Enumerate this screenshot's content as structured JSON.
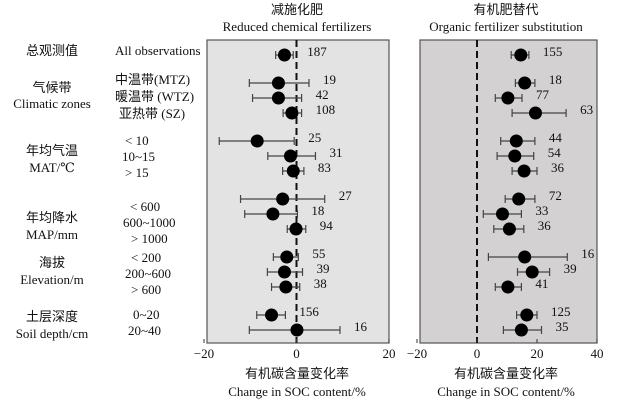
{
  "chart_data": [
    {
      "type": "forest",
      "title": "减施化肥",
      "subtitle": "Reduced chemical fertilizers",
      "xlabel": "有机碳含量变化率",
      "xlabel_en": "Change in SOC content/%",
      "xlim": [
        -20,
        20
      ],
      "xticks": [
        "-20",
        "0",
        "20"
      ],
      "xtick_values": [
        -20,
        0,
        20
      ],
      "background": "#e4e3e4",
      "rows": [
        {
          "n": "187",
          "mean": -2.6,
          "lo": -4.5,
          "hi": -0.7
        },
        {
          "n": "19",
          "mean": -3.9,
          "lo": -10.2,
          "hi": 2.7
        },
        {
          "n": "42",
          "mean": -3.9,
          "lo": -9.5,
          "hi": 1.1
        },
        {
          "n": "108",
          "mean": -1.0,
          "lo": -2.9,
          "hi": 1.1
        },
        {
          "n": "25",
          "mean": -8.5,
          "lo": -16.7,
          "hi": -0.5
        },
        {
          "n": "31",
          "mean": -1.3,
          "lo": -6.2,
          "hi": 4.1
        },
        {
          "n": "83",
          "mean": -0.7,
          "lo": -3.0,
          "hi": 1.6
        },
        {
          "n": "27",
          "mean": -3.0,
          "lo": -12.1,
          "hi": 6.1
        },
        {
          "n": "18",
          "mean": -5.1,
          "lo": -11.2,
          "hi": 0.2
        },
        {
          "n": "94",
          "mean": -0.1,
          "lo": -2.0,
          "hi": 2.0
        },
        {
          "n": "55",
          "mean": -2.1,
          "lo": -5.0,
          "hi": 0.4
        },
        {
          "n": "39",
          "mean": -2.6,
          "lo": -6.3,
          "hi": 1.3
        },
        {
          "n": "38",
          "mean": -2.3,
          "lo": -5.4,
          "hi": 0.7
        },
        {
          "n": "156",
          "mean": -5.4,
          "lo": -8.6,
          "hi": -2.4
        },
        {
          "n": "16",
          "mean": 0.1,
          "lo": -10.2,
          "hi": 9.4
        }
      ]
    },
    {
      "type": "forest",
      "title": "有机肥替代",
      "subtitle": "Organic fertilizer substitution",
      "xlabel": "有机碳含量变化率",
      "xlabel_en": "Change in SOC content/%",
      "xlim": [
        -20,
        40
      ],
      "xticks": [
        "-20",
        "0",
        "20",
        "40"
      ],
      "xtick_values": [
        -20,
        0,
        20,
        40
      ],
      "background": "#d3d1d2",
      "rows": [
        {
          "n": "155",
          "mean": 14.6,
          "lo": 11.4,
          "hi": 17.3
        },
        {
          "n": "18",
          "mean": 15.9,
          "lo": 12.8,
          "hi": 19.3
        },
        {
          "n": "77",
          "mean": 10.3,
          "lo": 6.1,
          "hi": 15.0
        },
        {
          "n": "63",
          "mean": 19.5,
          "lo": 11.7,
          "hi": 29.7
        },
        {
          "n": "44",
          "mean": 13.1,
          "lo": 7.9,
          "hi": 19.3
        },
        {
          "n": "54",
          "mean": 12.6,
          "lo": 6.7,
          "hi": 18.9
        },
        {
          "n": "36",
          "mean": 15.7,
          "lo": 11.7,
          "hi": 20.0
        },
        {
          "n": "72",
          "mean": 13.9,
          "lo": 9.4,
          "hi": 19.3
        },
        {
          "n": "33",
          "mean": 8.5,
          "lo": 2.1,
          "hi": 14.8
        },
        {
          "n": "36",
          "mean": 10.8,
          "lo": 5.6,
          "hi": 15.6
        },
        {
          "n": "16",
          "mean": 15.9,
          "lo": 3.8,
          "hi": 30.1
        },
        {
          "n": "39",
          "mean": 18.4,
          "lo": 13.5,
          "hi": 24.2
        },
        {
          "n": "41",
          "mean": 10.3,
          "lo": 6.1,
          "hi": 14.8
        },
        {
          "n": "125",
          "mean": 16.6,
          "lo": 13.2,
          "hi": 20.0
        },
        {
          "n": "35",
          "mean": 14.8,
          "lo": 8.8,
          "hi": 21.5
        }
      ]
    }
  ],
  "groups": [
    {
      "zh": "总观测值",
      "en": "",
      "subs": [
        "All observations"
      ]
    },
    {
      "zh": "气候带",
      "en": "Climatic zones",
      "subs": [
        "中温带(MTZ)",
        "暖温带 (WTZ)",
        "亚热带 (SZ)"
      ]
    },
    {
      "zh": "年均气温",
      "en": "MAT/℃",
      "subs": [
        "< 10",
        "10~15",
        "> 15"
      ]
    },
    {
      "zh": "年均降水",
      "en": "MAP/mm",
      "subs": [
        "< 600",
        "600~1000",
        "> 1000"
      ]
    },
    {
      "zh": "海拔",
      "en": "Elevation/m",
      "subs": [
        "< 200",
        "200~600",
        "> 600"
      ]
    },
    {
      "zh": "土层深度",
      "en": "Soil depth/cm",
      "subs": [
        "0~20",
        "20~40"
      ]
    }
  ]
}
